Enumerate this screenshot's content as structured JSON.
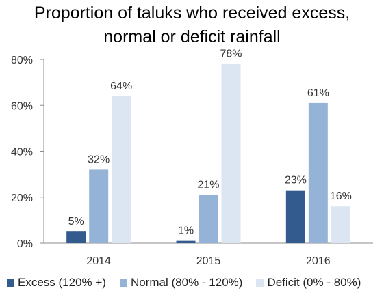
{
  "chart_data": {
    "type": "bar",
    "title": "Proportion of taluks who received excess, normal or deficit rainfall",
    "title_lines": [
      "Proportion of taluks who received excess,",
      "normal or deficit rainfall"
    ],
    "categories": [
      "2014",
      "2015",
      "2016"
    ],
    "series": [
      {
        "name": "Excess (120% +)",
        "values": [
          5,
          1,
          23
        ],
        "labels": [
          "5%",
          "1%",
          "23%"
        ],
        "color": "#335b8e"
      },
      {
        "name": "Normal (80% - 120%)",
        "values": [
          32,
          21,
          61
        ],
        "labels": [
          "32%",
          "21%",
          "61%"
        ],
        "color": "#95b3d7"
      },
      {
        "name": "Deficit (0% - 80%)",
        "values": [
          64,
          78,
          16
        ],
        "labels": [
          "64%",
          "78%",
          "16%"
        ],
        "color": "#dce6f2"
      }
    ],
    "ylim": [
      0,
      80
    ],
    "yticks": [
      "0%",
      "20%",
      "40%",
      "60%",
      "80%"
    ],
    "ytick_values": [
      0,
      20,
      40,
      60,
      80
    ],
    "legend_position": "bottom",
    "grid": false
  }
}
